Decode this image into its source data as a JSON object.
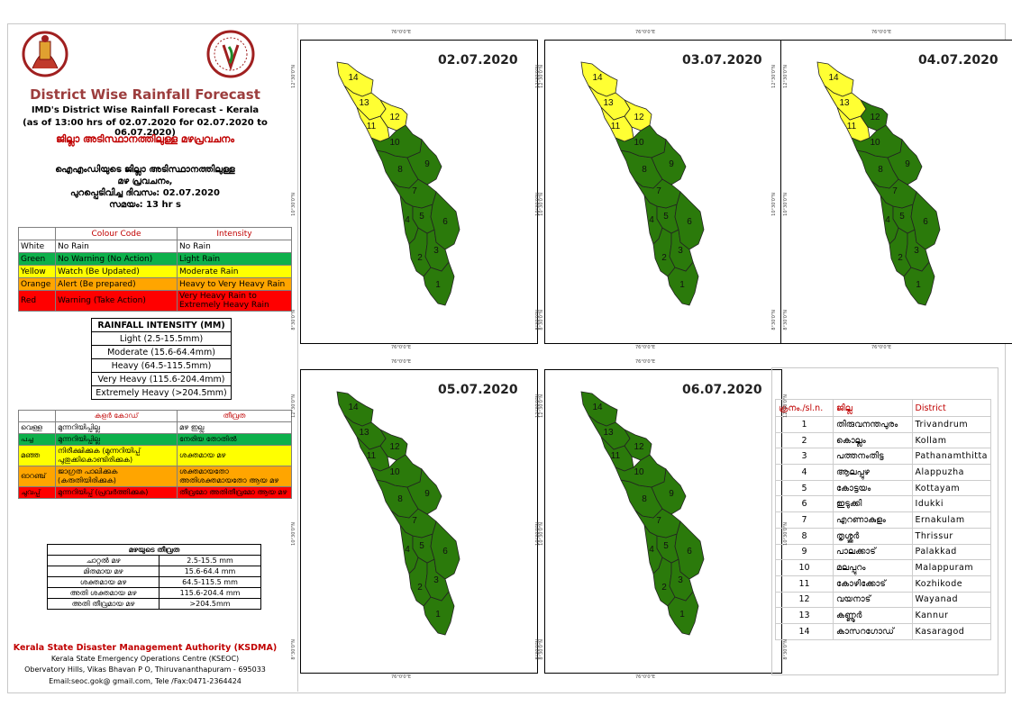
{
  "header": {
    "title": "District Wise Rainfall Forecast",
    "subtitle": "IMD's District Wise Rainfall Forecast - Kerala",
    "as_of": "(as of 13:00 hrs of 02.07.2020  for 02.07.2020  to 06.07.2020)",
    "title_ml": "ജില്ലാ അടിസ്ഥാനത്തിലുള്ള മഴപ്രവചനം",
    "ml_line1": "ഐഎംഡിയുടെ ജില്ലാ  അടിസ്ഥാനത്തിലുള്ള",
    "ml_line2": "മഴ പ്രവചനം,",
    "ml_line3": "പുറപ്പെടിവിച്ച     ദിവസം: 02.07.2020",
    "ml_line4": "സമയം: 13 hr s"
  },
  "colour_code": {
    "headers": [
      "",
      "Colour Code",
      "Intensity"
    ],
    "rows": [
      {
        "name": "White",
        "code": "No Rain",
        "intensity": "No Rain",
        "color": "#ffffff"
      },
      {
        "name": "Green",
        "code": "No Warning (No Action)",
        "intensity": "Light Rain",
        "color": "#0db04b"
      },
      {
        "name": "Yellow",
        "code": "Watch (Be Updated)",
        "intensity": "Moderate Rain",
        "color": "#ffff00"
      },
      {
        "name": "Orange",
        "code": "Alert (Be prepared)",
        "intensity": "Heavy to Very Heavy Rain",
        "color": "#ffa500"
      },
      {
        "name": "Red",
        "code": "Warning (Take Action)",
        "intensity": "Very Heavy Rain to Extremely Heavy Rain",
        "color": "#ff0000"
      }
    ]
  },
  "rainfall_intensity": {
    "title": "RAINFALL INTENSITY (MM)",
    "rows": [
      "Light (2.5-15.5mm)",
      "Moderate (15.6-64.4mm)",
      "Heavy (64.5-115.5mm)",
      "Very Heavy (115.6-204.4mm)",
      "Extremely Heavy (>204.5mm)"
    ]
  },
  "ml_colour_code": {
    "headers": [
      "",
      "കളർ കോഡ്",
      "തീവ്രത"
    ],
    "rows": [
      {
        "name": "വെള്ള",
        "code": "മുന്നറിയിപ്പില്ല",
        "intensity": "മഴ ഇല്ല",
        "color": "#ffffff"
      },
      {
        "name": "പച്ച",
        "code": "മുന്നറിയിപ്പില്ല",
        "intensity": "നേരിയ തോതിൽ",
        "color": "#0db04b"
      },
      {
        "name": "മഞ്ഞ",
        "code": "നിരീക്ഷിക്കുക (മുന്നറിയിപ്പ് പുതുക്കികൊണ്ടിരിക്കുക)",
        "intensity": "ശക്തമായ മഴ",
        "color": "#ffff00"
      },
      {
        "name": "ഓറഞ്ച്",
        "code": "ജാഗ്രത പാലിക്കുക (കരുതിയിരിക്കുക)",
        "intensity": "ശക്തമായതോ അതിശക്തമായതോ ആയ മഴ",
        "color": "#ffa500"
      },
      {
        "name": "ചുവപ്പ്",
        "code": "മുന്നറിയിപ്പ് (പ്രവർത്തിക്കുക)",
        "intensity": "തീവ്രമോ അതിതീവ്രമോ ആയ മഴ",
        "color": "#ff0000"
      }
    ]
  },
  "ml_intensity": {
    "title": "മഴയുടെ  തീവ്രത",
    "rows": [
      {
        "label": "ചാറ്റൽ  മഴ",
        "range": "2.5-15.5 mm"
      },
      {
        "label": "മിതമായ  മഴ",
        "range": "15.6-64.4 mm"
      },
      {
        "label": "ശക്തമായ  മഴ",
        "range": "64.5-115.5 mm"
      },
      {
        "label": "അതി  ശക്തമായ  മഴ",
        "range": "115.6-204.4 mm"
      },
      {
        "label": "അതി  തീവ്രമായ  മഴ",
        "range": ">204.5mm"
      }
    ]
  },
  "footer": {
    "org": "Kerala State Disaster Management Authority (KSDMA)",
    "seoc": "Kerala State Emergency Operations Centre (KSEOC)",
    "address": "Obervatory Hills, Vikas Bhavan P O, Thiruvananthapuram - 695033",
    "contact": "Email:seoc.gok@ gmail.com, Tele /Fax:0471-2364424"
  },
  "maps": [
    {
      "date": "02.07.2020",
      "yellow": [
        11,
        12,
        13,
        14
      ]
    },
    {
      "date": "03.07.2020",
      "yellow": [
        11,
        12,
        13,
        14
      ]
    },
    {
      "date": "04.07.2020",
      "yellow": [
        11,
        13,
        14
      ]
    },
    {
      "date": "05.07.2020",
      "yellow": []
    },
    {
      "date": "06.07.2020",
      "yellow": []
    }
  ],
  "map_ticks": {
    "lon": "76°0'0\"E",
    "lat_top": "12°30'0\"N",
    "lat_mid": "10°30'0\"N",
    "lat_bot": "8°30'0\"N"
  },
  "districts": {
    "headers": [
      "ക്രനം./sl.n.",
      "ജില്ല",
      "District"
    ],
    "rows": [
      {
        "n": "1",
        "ml": "തിരുവനന്തപുരം",
        "en": "Trivandrum"
      },
      {
        "n": "2",
        "ml": "കൊല്ലം",
        "en": "Kollam"
      },
      {
        "n": "3",
        "ml": "പത്തനംതിട്ട",
        "en": "Pathanamthitta"
      },
      {
        "n": "4",
        "ml": "ആലപ്പുഴ",
        "en": "Alappuzha"
      },
      {
        "n": "5",
        "ml": "കോട്ടയം",
        "en": "Kottayam"
      },
      {
        "n": "6",
        "ml": "ഇടുക്കി",
        "en": "Idukki"
      },
      {
        "n": "7",
        "ml": "എറണാകുളം",
        "en": "Ernakulam"
      },
      {
        "n": "8",
        "ml": "തൃശ്ശൂർ",
        "en": "Thrissur"
      },
      {
        "n": "9",
        "ml": "പാലക്കാട്",
        "en": "Palakkad"
      },
      {
        "n": "10",
        "ml": "മലപ്പുറം",
        "en": "Malappuram"
      },
      {
        "n": "11",
        "ml": "കോഴിക്കോട്",
        "en": "Kozhikode"
      },
      {
        "n": "12",
        "ml": "വയനാട്",
        "en": "Wayanad"
      },
      {
        "n": "13",
        "ml": "കണ്ണൂർ",
        "en": "Kannur"
      },
      {
        "n": "14",
        "ml": "കാസറഗോഡ്",
        "en": "Kasaragod"
      }
    ]
  },
  "colors": {
    "green": "#2b7a0b",
    "yellow": "#ffff33",
    "title": "#9c3d3d",
    "red_text": "#c00000"
  }
}
